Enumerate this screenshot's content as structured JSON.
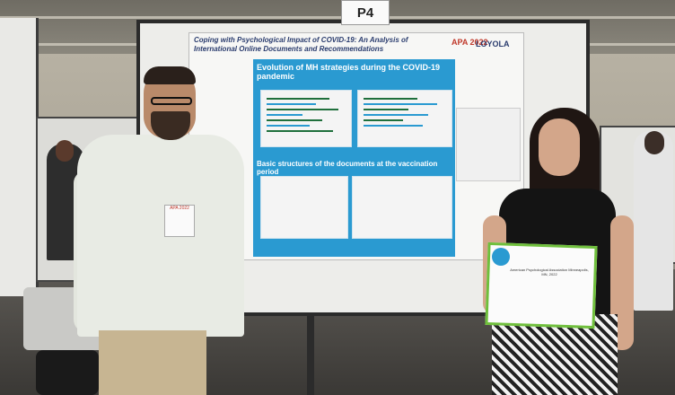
{
  "sign": {
    "label": "P4"
  },
  "poster": {
    "title": "Coping with Psychological Impact of COVID-19: An Analysis of International Online Documents and Recommendations",
    "logo_apa": "APA 2022",
    "logo_loyola": "LOYOLA",
    "section_1": "Evolution of MH strategies during the COVID-19 pandemic",
    "section_2": "Basic structures of the documents at the vaccination period"
  },
  "certificate": {
    "text": "American Psychological Association Minneapolis, MN, 2022"
  },
  "badge": {
    "label": "APA 2022"
  },
  "colors": {
    "poster_panel": "#2a9ad1",
    "certificate_border": "#6fbf3c",
    "apa_red": "#c0392b"
  }
}
